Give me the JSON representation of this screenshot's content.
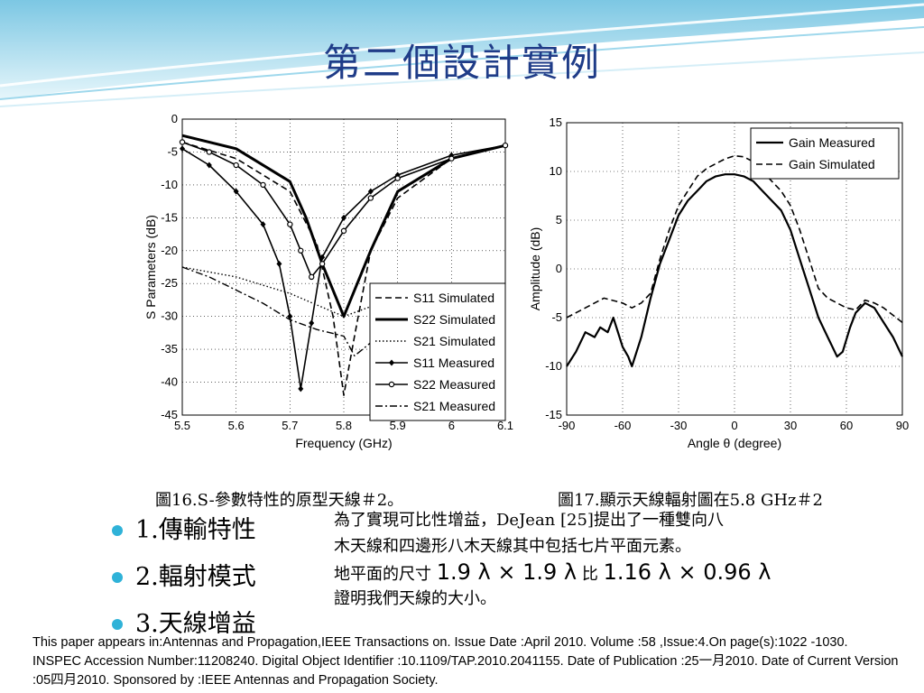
{
  "slide": {
    "title": "第二個設計實例",
    "caption_left": "圖16.S-參數特性的原型天線＃2。",
    "caption_right": "圖17.顯示天線輻射圖在5.8 GHz＃2",
    "bullets": [
      "1.傳輸特性",
      "2.輻射模式",
      "3.天線增益"
    ],
    "description": [
      "為了實現可比性增益，DeJean [25]提出了一種雙向八",
      "木天線和四邊形八木天線其中包括七片平面元素。",
      "證明我們天線的大小。"
    ],
    "desc_line3_prefix": "地平面的尺寸",
    "desc_line3_formula1": "1.9 λ × 1.9 λ",
    "desc_line3_mid": "比",
    "desc_line3_formula2": "1.16 λ × 0.96 λ",
    "footer": "This paper appears in:Antennas and Propagation,IEEE Transactions on. Issue Date :April 2010. Volume :58 ,Issue:4.On page(s):1022 -1030. INSPEC Accession Number:11208240. Digital Object Identifier :10.1109/TAP.2010.2041155. Date of Publication :25一月2010. Date of Current Version :05四月2010. Sponsored by :IEEE Antennas and Propagation Society.",
    "colors": {
      "title": "#1f3c88",
      "bullet": "#2fb2d8",
      "banner": "#bfe6f4"
    }
  },
  "chart_data": [
    {
      "type": "line",
      "xlabel": "Frequency (GHz)",
      "ylabel": "S Parameters (dB)",
      "xlim": [
        5.5,
        6.1
      ],
      "ylim": [
        -45,
        0
      ],
      "xticks": [
        "5.5",
        "5.6",
        "5.7",
        "5.8",
        "5.9",
        "6",
        "6.1"
      ],
      "yticks": [
        "0",
        "-5",
        "-10",
        "-15",
        "-20",
        "-25",
        "-30",
        "-35",
        "-40",
        "-45"
      ],
      "grid": true,
      "legend": "bottom-right",
      "series": [
        {
          "name": "S11 Simulated",
          "style": "dashed",
          "x": [
            5.5,
            5.6,
            5.7,
            5.75,
            5.78,
            5.8,
            5.82,
            5.85,
            5.9,
            6.0,
            6.1
          ],
          "y": [
            -3.5,
            -6,
            -11,
            -19,
            -30,
            -42,
            -33,
            -20,
            -12,
            -6,
            -4
          ]
        },
        {
          "name": "S22 Simulated",
          "style": "thick",
          "x": [
            5.5,
            5.6,
            5.7,
            5.73,
            5.76,
            5.8,
            5.85,
            5.9,
            6.0,
            6.1
          ],
          "y": [
            -2.5,
            -4.5,
            -9.5,
            -15,
            -22,
            -30,
            -20,
            -11,
            -6,
            -4
          ]
        },
        {
          "name": "S21 Simulated",
          "style": "dotted",
          "x": [
            5.5,
            5.6,
            5.7,
            5.8,
            5.9
          ],
          "y": [
            -22.5,
            -24,
            -26.5,
            -30,
            -27
          ]
        },
        {
          "name": "S11 Measured",
          "style": "marker-diamond",
          "x": [
            5.5,
            5.55,
            5.6,
            5.65,
            5.68,
            5.7,
            5.72,
            5.74,
            5.76,
            5.8,
            5.85,
            5.9,
            6.0,
            6.1
          ],
          "y": [
            -4.5,
            -7,
            -11,
            -16,
            -22,
            -30,
            -41,
            -31,
            -21,
            -15,
            -11,
            -8.5,
            -5.5,
            -4
          ]
        },
        {
          "name": "S22 Measured",
          "style": "marker-circle",
          "x": [
            5.5,
            5.55,
            5.6,
            5.65,
            5.7,
            5.72,
            5.74,
            5.76,
            5.8,
            5.85,
            5.9,
            6.0,
            6.1
          ],
          "y": [
            -3.5,
            -5,
            -7,
            -10,
            -16,
            -20,
            -24,
            -22,
            -17,
            -12,
            -9,
            -6,
            -4
          ]
        },
        {
          "name": "S21 Measured",
          "style": "dashdot",
          "x": [
            5.5,
            5.55,
            5.6,
            5.65,
            5.7,
            5.75,
            5.8,
            5.82,
            5.85,
            5.88
          ],
          "y": [
            -22.5,
            -24,
            -26,
            -28,
            -30.5,
            -32,
            -33,
            -36,
            -34,
            -31
          ]
        }
      ]
    },
    {
      "type": "line",
      "xlabel": "Angle θ (degree)",
      "ylabel": "Amplitude (dB)",
      "xlim": [
        -90,
        90
      ],
      "ylim": [
        -15,
        15
      ],
      "xticks": [
        "-90",
        "-60",
        "-30",
        "0",
        "30",
        "60",
        "90"
      ],
      "yticks": [
        "15",
        "10",
        "5",
        "0",
        "-5",
        "-10",
        "-15"
      ],
      "grid": true,
      "legend": "top-right",
      "series": [
        {
          "name": "Gain Measured",
          "style": "solid",
          "x": [
            -90,
            -85,
            -80,
            -75,
            -72,
            -68,
            -65,
            -60,
            -57,
            -55,
            -50,
            -45,
            -40,
            -35,
            -30,
            -25,
            -20,
            -15,
            -10,
            -5,
            0,
            5,
            10,
            15,
            20,
            25,
            30,
            35,
            40,
            45,
            50,
            55,
            58,
            62,
            65,
            70,
            75,
            80,
            85,
            90
          ],
          "y": [
            -10,
            -8.5,
            -6.5,
            -7,
            -6,
            -6.5,
            -5,
            -8,
            -9,
            -10,
            -7,
            -3,
            0.5,
            3,
            5.5,
            7,
            8,
            9,
            9.5,
            9.7,
            9.7,
            9.5,
            9,
            8,
            7,
            6,
            4,
            1,
            -2,
            -5,
            -7,
            -9,
            -8.5,
            -6,
            -4.5,
            -3.5,
            -4,
            -5.5,
            -7,
            -9
          ]
        },
        {
          "name": "Gain Simulated",
          "style": "dashed",
          "x": [
            -90,
            -80,
            -70,
            -60,
            -55,
            -50,
            -45,
            -40,
            -35,
            -30,
            -25,
            -20,
            -15,
            -10,
            -5,
            0,
            5,
            10,
            15,
            20,
            25,
            30,
            35,
            40,
            45,
            50,
            55,
            60,
            65,
            70,
            75,
            80,
            90
          ],
          "y": [
            -5,
            -4,
            -3,
            -3.5,
            -4,
            -3.5,
            -2.5,
            1,
            4,
            6.5,
            8,
            9.5,
            10.3,
            10.8,
            11.3,
            11.6,
            11.5,
            11,
            10,
            9,
            8,
            6.5,
            4,
            1,
            -2,
            -3,
            -3.5,
            -4,
            -4.2,
            -3.2,
            -3.5,
            -4,
            -5.5
          ]
        }
      ]
    }
  ]
}
